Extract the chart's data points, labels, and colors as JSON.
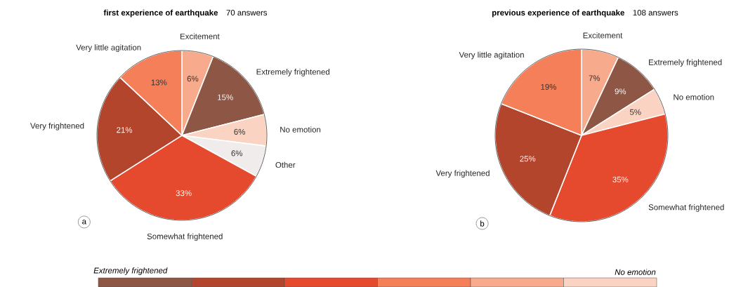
{
  "chart_data": [
    {
      "type": "pie",
      "title": "first experience of earthquake",
      "subtitle": "70 answers",
      "categories": [
        "Excitement",
        "Extremely frightened",
        "No emotion",
        "Other",
        "Somewhat frightened",
        "Very frightened",
        "Very little agitation"
      ],
      "values": [
        6,
        15,
        6,
        6,
        33,
        21,
        13
      ],
      "value_labels": [
        "6%",
        "15%",
        "6%",
        "6%",
        "33%",
        "21%",
        "13%"
      ],
      "colors": [
        "#f7ab8c",
        "#8e5644",
        "#fbd3c2",
        "#f1ecec",
        "#e64a2e",
        "#b4452d",
        "#f47f59"
      ],
      "annotations": [
        "a"
      ]
    },
    {
      "type": "pie",
      "title": "previous experience of earthquake",
      "subtitle": "108 answers",
      "categories": [
        "Excitement",
        "Extremely frightened",
        "No emotion",
        "Somewhat frightened",
        "Very frightened",
        "Very little agitation"
      ],
      "values": [
        7,
        9,
        5,
        35,
        25,
        19
      ],
      "value_labels": [
        "7%",
        "9%",
        "5%",
        "35%",
        "25%",
        "19%"
      ],
      "colors": [
        "#f7ab8c",
        "#8e5644",
        "#fbd3c2",
        "#e64a2e",
        "#b4452d",
        "#f47f59"
      ],
      "annotations": [
        "b"
      ]
    },
    {
      "type": "other",
      "annotations": [
        "Extremely frightened",
        "No emotion"
      ],
      "colors": [
        "#8e5644",
        "#b4452d",
        "#e64a2e",
        "#f47f59",
        "#f7ab8c",
        "#fbd3c2"
      ]
    }
  ]
}
